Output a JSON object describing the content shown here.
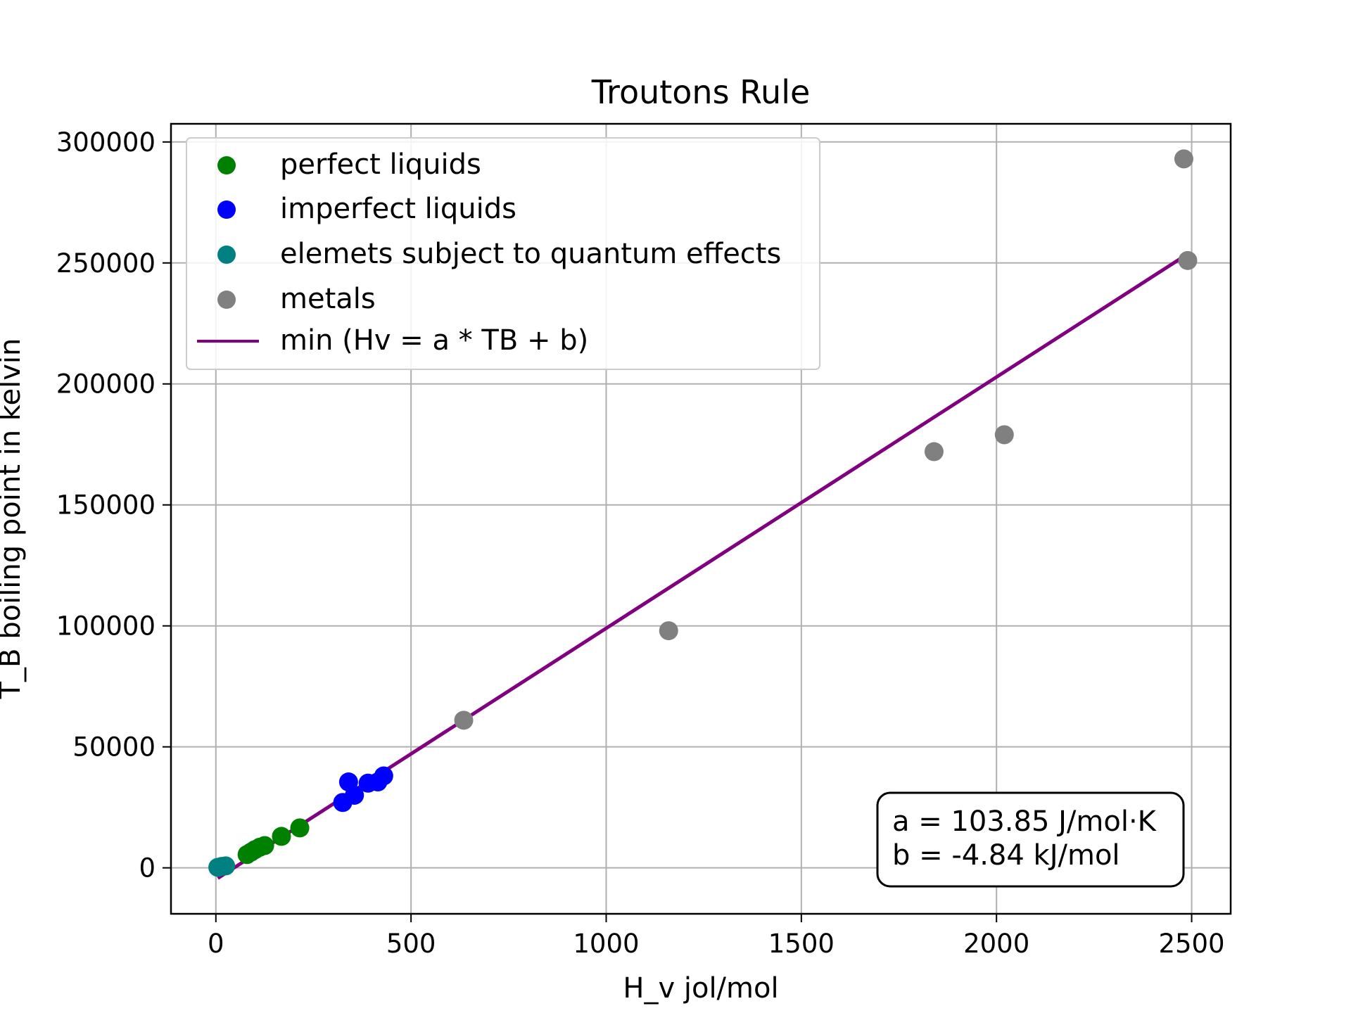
{
  "chart_data": {
    "type": "scatter",
    "title": "Troutons Rule",
    "xlabel": "H_v jol/mol",
    "ylabel": "T_B boiling point in kelvin",
    "xlim": [
      -115,
      2600
    ],
    "ylim": [
      -19000,
      307500
    ],
    "xticks": [
      0,
      500,
      1000,
      1500,
      2000,
      2500
    ],
    "yticks": [
      0,
      50000,
      100000,
      150000,
      200000,
      250000,
      300000
    ],
    "grid": true,
    "legend_position": "top-left",
    "series": [
      {
        "name": "perfect liquids",
        "kind": "scatter",
        "color": "#008000",
        "points": [
          {
            "x": 80,
            "y": 5500
          },
          {
            "x": 90,
            "y": 6500
          },
          {
            "x": 100,
            "y": 7500
          },
          {
            "x": 112,
            "y": 8500
          },
          {
            "x": 125,
            "y": 9200
          },
          {
            "x": 168,
            "y": 13000
          },
          {
            "x": 215,
            "y": 16500
          }
        ]
      },
      {
        "name": "imperfect liquids",
        "kind": "scatter",
        "color": "#0000ff",
        "points": [
          {
            "x": 325,
            "y": 27000
          },
          {
            "x": 340,
            "y": 35500
          },
          {
            "x": 355,
            "y": 30000
          },
          {
            "x": 390,
            "y": 35000
          },
          {
            "x": 415,
            "y": 35500
          },
          {
            "x": 430,
            "y": 38000
          }
        ]
      },
      {
        "name": "elemets subject to quantum effects",
        "kind": "scatter",
        "color": "#008080",
        "points": [
          {
            "x": 5,
            "y": 200
          },
          {
            "x": 15,
            "y": 600
          },
          {
            "x": 25,
            "y": 800
          }
        ]
      },
      {
        "name": "metals",
        "kind": "scatter",
        "color": "#808080",
        "points": [
          {
            "x": 635,
            "y": 61000
          },
          {
            "x": 1160,
            "y": 98000
          },
          {
            "x": 1840,
            "y": 172000
          },
          {
            "x": 2020,
            "y": 179000
          },
          {
            "x": 2480,
            "y": 293000
          },
          {
            "x": 2490,
            "y": 251000
          }
        ]
      },
      {
        "name": "min (Hv = a * TB + b)",
        "kind": "line",
        "color": "#800080",
        "points": [
          {
            "x": 5,
            "y": -4300
          },
          {
            "x": 2485,
            "y": 253200
          }
        ]
      }
    ],
    "annotation": {
      "lines": [
        "a = 103.85 J/mol·K",
        "b = -4.84 kJ/mol"
      ],
      "position": "bottom-right"
    }
  }
}
